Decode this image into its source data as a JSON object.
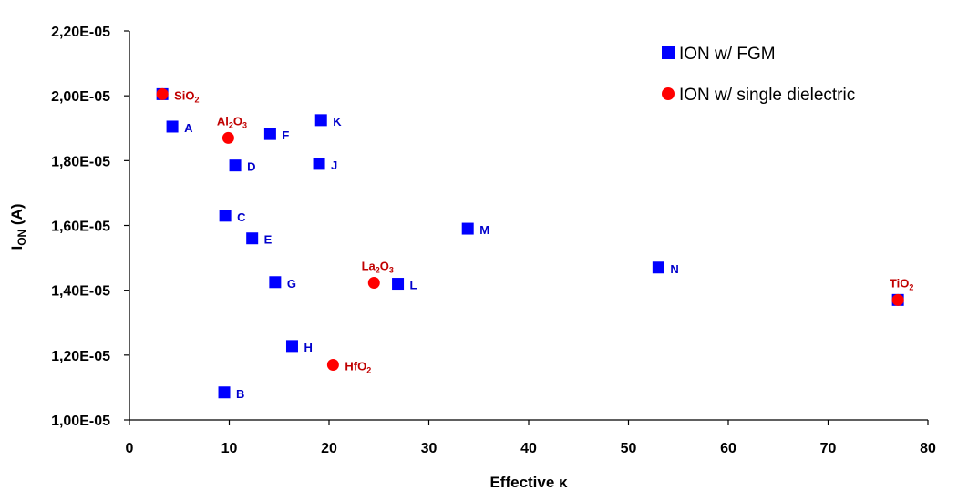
{
  "chart_data": {
    "type": "scatter",
    "xlabel": "Effective κ",
    "ylabel_main": "I",
    "ylabel_sub": "ON",
    "ylabel_unit": " (A)",
    "xlim": [
      0,
      80
    ],
    "ylim": [
      1e-05,
      2.2e-05
    ],
    "x_ticks": [
      0,
      10,
      20,
      30,
      40,
      50,
      60,
      70,
      80
    ],
    "x_tick_labels": [
      "0",
      "10",
      "20",
      "30",
      "40",
      "50",
      "60",
      "70",
      "80"
    ],
    "y_ticks": [
      1e-05,
      1.2e-05,
      1.4e-05,
      1.6e-05,
      1.8e-05,
      2e-05,
      2.2e-05
    ],
    "y_tick_labels": [
      "1,00E-05",
      "1,20E-05",
      "1,40E-05",
      "1,60E-05",
      "1,80E-05",
      "2,00E-05",
      "2,20E-05"
    ],
    "grid": false,
    "legend_position": "top-right",
    "series": [
      {
        "name": "ION w/ FGM",
        "color": "#0000ff",
        "marker": "square",
        "points": [
          {
            "x": 3.3,
            "y": 2.005e-05,
            "label": ""
          },
          {
            "x": 4.3,
            "y": 1.905e-05,
            "label": "A"
          },
          {
            "x": 9.5,
            "y": 1.085e-05,
            "label": "B"
          },
          {
            "x": 9.6,
            "y": 1.63e-05,
            "label": "C"
          },
          {
            "x": 10.6,
            "y": 1.785e-05,
            "label": "D"
          },
          {
            "x": 12.3,
            "y": 1.56e-05,
            "label": "E"
          },
          {
            "x": 14.1,
            "y": 1.882e-05,
            "label": "F"
          },
          {
            "x": 14.6,
            "y": 1.425e-05,
            "label": "G"
          },
          {
            "x": 16.3,
            "y": 1.228e-05,
            "label": "H"
          },
          {
            "x": 19.0,
            "y": 1.79e-05,
            "label": "J"
          },
          {
            "x": 19.2,
            "y": 1.925e-05,
            "label": "K"
          },
          {
            "x": 26.9,
            "y": 1.42e-05,
            "label": "L"
          },
          {
            "x": 33.9,
            "y": 1.59e-05,
            "label": "M"
          },
          {
            "x": 53.0,
            "y": 1.47e-05,
            "label": "N"
          },
          {
            "x": 77.0,
            "y": 1.37e-05,
            "label": ""
          }
        ]
      },
      {
        "name": "ION w/ single dielectric",
        "color": "#ff0000",
        "marker": "circle",
        "points": [
          {
            "x": 3.3,
            "y": 2.005e-05,
            "label": "SiO",
            "sub": "2",
            "label_pos": "right"
          },
          {
            "x": 9.9,
            "y": 1.87e-05,
            "label": "Al",
            "sub": "2",
            "label2": "O",
            "sub2": "3",
            "label_pos": "above"
          },
          {
            "x": 20.4,
            "y": 1.17e-05,
            "label": "HfO",
            "sub": "2",
            "label_pos": "right"
          },
          {
            "x": 24.5,
            "y": 1.423e-05,
            "label": "La",
            "sub": "2",
            "label2": "O",
            "sub2": "3",
            "label_pos": "above"
          },
          {
            "x": 77.0,
            "y": 1.37e-05,
            "label": "TiO",
            "sub": "2",
            "label_pos": "above"
          }
        ]
      }
    ]
  }
}
